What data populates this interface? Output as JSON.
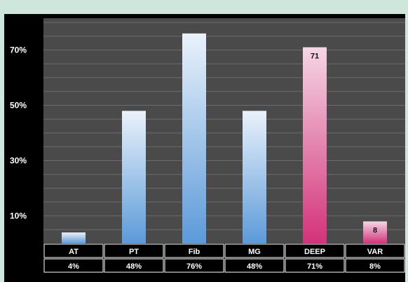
{
  "chart_data": {
    "type": "bar",
    "categories": [
      "AT",
      "PT",
      "Fib",
      "MG",
      "DEEP",
      "VAR"
    ],
    "values": [
      4,
      48,
      76,
      48,
      71,
      8
    ],
    "table_values": [
      "4%",
      "48%",
      "76%",
      "48%",
      "71%",
      "8%"
    ],
    "bar_labels": [
      "",
      "",
      "",
      "",
      "71",
      "8"
    ],
    "bar_styles": [
      "blue",
      "blue",
      "blue",
      "blue",
      "pink",
      "pink"
    ],
    "yticks": [
      {
        "label": "10%",
        "value": 10
      },
      {
        "label": "30%",
        "value": 30
      },
      {
        "label": "50%",
        "value": 50
      },
      {
        "label": "70%",
        "value": 70
      }
    ],
    "ylim": [
      0,
      80
    ],
    "grid": true,
    "colors": {
      "blue_top": "#eaf2fb",
      "blue_bottom": "#5b9ad9",
      "pink_top": "#f6d6e4",
      "pink_bottom": "#d3327a",
      "plot_bg": "#4a4a4a",
      "grid": "#6c6c6c"
    }
  }
}
